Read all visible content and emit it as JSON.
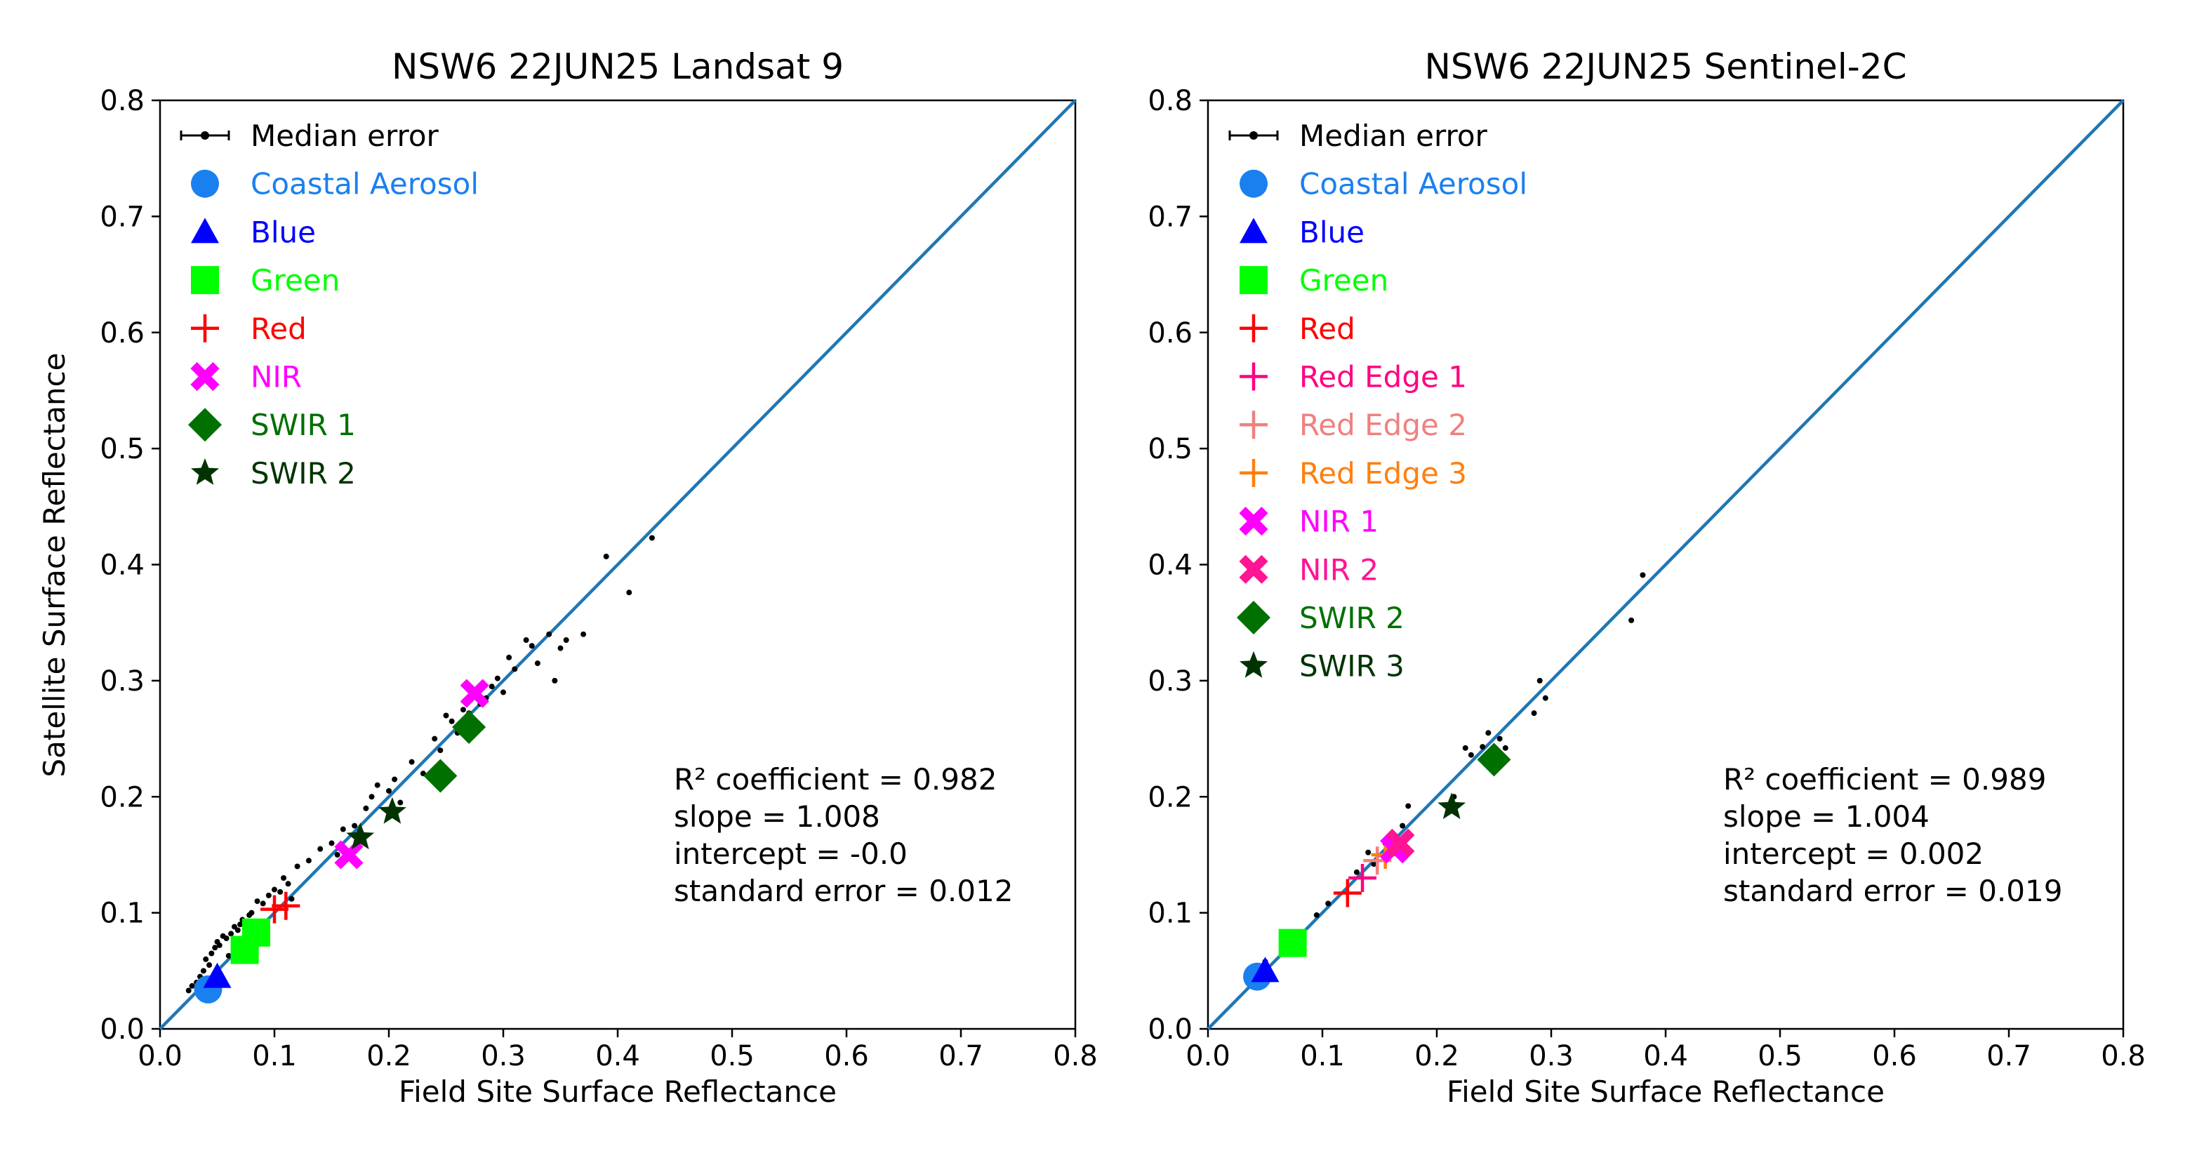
{
  "chart_data": [
    {
      "type": "scatter",
      "title": "NSW6 22JUN25 Landsat 9",
      "xlabel": "Field Site Surface Reflectance",
      "ylabel": "Satellite Surface Reflectance",
      "xlim": [
        0.0,
        0.8
      ],
      "ylim": [
        0.0,
        0.8
      ],
      "ticks": [
        "0.0",
        "0.1",
        "0.2",
        "0.3",
        "0.4",
        "0.5",
        "0.6",
        "0.7",
        "0.8"
      ],
      "legend_position": "top-left",
      "legend_entries": [
        {
          "label": "Median error",
          "marker": "errorbar",
          "color": "#000000"
        },
        {
          "label": "Coastal Aerosol",
          "marker": "circle",
          "color": "#1a80f0"
        },
        {
          "label": "Blue",
          "marker": "triangle",
          "color": "#0000ff"
        },
        {
          "label": "Green",
          "marker": "square",
          "color": "#00ff00"
        },
        {
          "label": "Red",
          "marker": "plus",
          "color": "#ff0000"
        },
        {
          "label": "NIR",
          "marker": "x",
          "color": "#ff00ff"
        },
        {
          "label": "SWIR 1",
          "marker": "diamond",
          "color": "#007000"
        },
        {
          "label": "SWIR 2",
          "marker": "star",
          "color": "#003300"
        }
      ],
      "series": [
        {
          "name": "Coastal Aerosol",
          "marker": "circle",
          "color": "#1a80f0",
          "x": [
            0.042
          ],
          "y": [
            0.034
          ]
        },
        {
          "name": "Blue",
          "marker": "triangle",
          "color": "#0000ff",
          "x": [
            0.05
          ],
          "y": [
            0.045
          ]
        },
        {
          "name": "Green",
          "marker": "square",
          "color": "#00ff00",
          "x": [
            0.074,
            0.084
          ],
          "y": [
            0.068,
            0.083
          ]
        },
        {
          "name": "Red",
          "marker": "plus",
          "color": "#ff0000",
          "x": [
            0.1,
            0.11
          ],
          "y": [
            0.103,
            0.106
          ]
        },
        {
          "name": "NIR",
          "marker": "x",
          "color": "#ff00ff",
          "x": [
            0.165,
            0.275
          ],
          "y": [
            0.15,
            0.289
          ]
        },
        {
          "name": "SWIR 1",
          "marker": "diamond",
          "color": "#007000",
          "x": [
            0.245,
            0.27
          ],
          "y": [
            0.218,
            0.26
          ]
        },
        {
          "name": "SWIR 2",
          "marker": "star",
          "color": "#003300",
          "x": [
            0.175,
            0.203
          ],
          "y": [
            0.165,
            0.187
          ]
        }
      ],
      "median_error_points": {
        "x": [
          0.025,
          0.028,
          0.032,
          0.035,
          0.038,
          0.04,
          0.043,
          0.045,
          0.048,
          0.05,
          0.052,
          0.055,
          0.058,
          0.06,
          0.062,
          0.065,
          0.068,
          0.07,
          0.072,
          0.075,
          0.078,
          0.08,
          0.085,
          0.09,
          0.095,
          0.1,
          0.105,
          0.108,
          0.112,
          0.115,
          0.12,
          0.13,
          0.14,
          0.15,
          0.155,
          0.16,
          0.17,
          0.18,
          0.185,
          0.19,
          0.2,
          0.205,
          0.21,
          0.22,
          0.23,
          0.24,
          0.245,
          0.25,
          0.255,
          0.26,
          0.265,
          0.27,
          0.28,
          0.285,
          0.29,
          0.295,
          0.3,
          0.305,
          0.31,
          0.32,
          0.325,
          0.33,
          0.34,
          0.345,
          0.35,
          0.355,
          0.37,
          0.39,
          0.41,
          0.43
        ],
        "y": [
          0.033,
          0.037,
          0.04,
          0.045,
          0.05,
          0.06,
          0.055,
          0.065,
          0.07,
          0.075,
          0.072,
          0.08,
          0.078,
          0.063,
          0.082,
          0.088,
          0.085,
          0.09,
          0.094,
          0.092,
          0.098,
          0.1,
          0.11,
          0.108,
          0.115,
          0.12,
          0.118,
          0.13,
          0.125,
          0.112,
          0.14,
          0.145,
          0.155,
          0.16,
          0.15,
          0.172,
          0.175,
          0.19,
          0.2,
          0.21,
          0.205,
          0.215,
          0.195,
          0.23,
          0.22,
          0.25,
          0.24,
          0.27,
          0.265,
          0.255,
          0.275,
          0.272,
          0.28,
          0.285,
          0.295,
          0.302,
          0.29,
          0.32,
          0.31,
          0.335,
          0.33,
          0.315,
          0.34,
          0.3,
          0.328,
          0.335,
          0.34,
          0.407,
          0.376,
          0.423
        ]
      },
      "stats": {
        "r2": "R² coefficient = 0.982",
        "slope": "slope = 1.008",
        "intercept": "intercept = -0.0",
        "std_error": "standard error = 0.012"
      }
    },
    {
      "type": "scatter",
      "title": "NSW6 22JUN25 Sentinel-2C",
      "xlabel": "Field Site Surface Reflectance",
      "ylabel": "",
      "xlim": [
        0.0,
        0.8
      ],
      "ylim": [
        0.0,
        0.8
      ],
      "ticks": [
        "0.0",
        "0.1",
        "0.2",
        "0.3",
        "0.4",
        "0.5",
        "0.6",
        "0.7",
        "0.8"
      ],
      "legend_position": "top-left",
      "legend_entries": [
        {
          "label": "Median error",
          "marker": "errorbar",
          "color": "#000000"
        },
        {
          "label": "Coastal Aerosol",
          "marker": "circle",
          "color": "#1a80f0"
        },
        {
          "label": "Blue",
          "marker": "triangle",
          "color": "#0000ff"
        },
        {
          "label": "Green",
          "marker": "square",
          "color": "#00ff00"
        },
        {
          "label": "Red",
          "marker": "plus",
          "color": "#ff0000"
        },
        {
          "label": "Red Edge 1",
          "marker": "plus",
          "color": "#ff0080"
        },
        {
          "label": "Red Edge 2",
          "marker": "plus",
          "color": "#f08080"
        },
        {
          "label": "Red Edge 3",
          "marker": "plus",
          "color": "#ff7f0e"
        },
        {
          "label": "NIR 1",
          "marker": "x",
          "color": "#ff00ff"
        },
        {
          "label": "NIR 2",
          "marker": "x",
          "color": "#ff1493"
        },
        {
          "label": "SWIR 2",
          "marker": "diamond",
          "color": "#007000"
        },
        {
          "label": "SWIR 3",
          "marker": "star",
          "color": "#003300"
        }
      ],
      "series": [
        {
          "name": "Coastal Aerosol",
          "marker": "circle",
          "color": "#1a80f0",
          "x": [
            0.043
          ],
          "y": [
            0.045
          ]
        },
        {
          "name": "Blue",
          "marker": "triangle",
          "color": "#0000ff",
          "x": [
            0.05
          ],
          "y": [
            0.05
          ]
        },
        {
          "name": "Green",
          "marker": "square",
          "color": "#00ff00",
          "x": [
            0.074
          ],
          "y": [
            0.074
          ]
        },
        {
          "name": "Red",
          "marker": "plus",
          "color": "#ff0000",
          "x": [
            0.122
          ],
          "y": [
            0.117
          ]
        },
        {
          "name": "Red Edge 1",
          "marker": "plus",
          "color": "#ff0080",
          "x": [
            0.135
          ],
          "y": [
            0.13
          ]
        },
        {
          "name": "Red Edge 2",
          "marker": "plus",
          "color": "#f08080",
          "x": [
            0.148
          ],
          "y": [
            0.145
          ]
        },
        {
          "name": "Red Edge 3",
          "marker": "plus",
          "color": "#ff7f0e",
          "x": [
            0.155
          ],
          "y": [
            0.15
          ]
        },
        {
          "name": "NIR 1",
          "marker": "x",
          "color": "#ff00ff",
          "x": [
            0.163
          ],
          "y": [
            0.155
          ]
        },
        {
          "name": "NIR 2",
          "marker": "x",
          "color": "#ff1493",
          "x": [
            0.168
          ],
          "y": [
            0.16
          ]
        },
        {
          "name": "SWIR 2",
          "marker": "diamond",
          "color": "#007000",
          "x": [
            0.25
          ],
          "y": [
            0.232
          ]
        },
        {
          "name": "SWIR 3",
          "marker": "star",
          "color": "#003300",
          "x": [
            0.213
          ],
          "y": [
            0.191
          ]
        }
      ],
      "median_error_points": {
        "x": [
          0.05,
          0.095,
          0.105,
          0.13,
          0.14,
          0.145,
          0.155,
          0.16,
          0.17,
          0.175,
          0.215,
          0.225,
          0.23,
          0.24,
          0.245,
          0.255,
          0.26,
          0.285,
          0.29,
          0.295,
          0.37,
          0.38
        ],
        "y": [
          0.058,
          0.098,
          0.108,
          0.135,
          0.152,
          0.142,
          0.16,
          0.165,
          0.175,
          0.192,
          0.2,
          0.242,
          0.236,
          0.243,
          0.255,
          0.25,
          0.242,
          0.272,
          0.3,
          0.285,
          0.352,
          0.391
        ]
      },
      "stats": {
        "r2": "R² coefficient = 0.989",
        "slope": "slope = 1.004",
        "intercept": "intercept = 0.002",
        "std_error": "standard error = 0.019"
      }
    }
  ]
}
